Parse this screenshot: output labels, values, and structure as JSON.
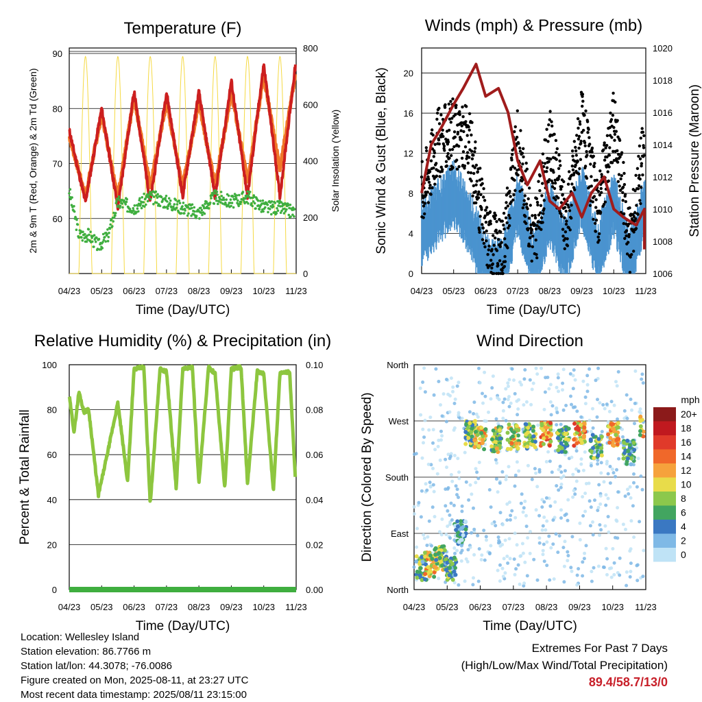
{
  "info": {
    "location": "Location: Wellesley Island",
    "elevation": "Station elevation: 86.7766 m",
    "latlon": "Station lat/lon: 44.3078; -76.0086",
    "created": "Figure created on Mon, 2025-08-11, at 23:27 UTC",
    "recent": "Most recent data timestamp: 2025/08/11 23:15:00"
  },
  "extremes": {
    "line1": "Extremes For Past 7 Days",
    "line2": "(High/Low/Max Wind/Total Precipitation)",
    "value": "89.4/58.7/13/0"
  },
  "chart_data": [
    {
      "type": "line",
      "title": "Temperature (F)",
      "xlabel": "Time (Day/UTC)",
      "ylabel": "2m & 9m T (Red, Orange) & 2m Td (Green)",
      "y2label": "Solar Insolation (Yellow)",
      "x_ticks": [
        "04/23",
        "05/23",
        "06/23",
        "07/23",
        "08/23",
        "09/23",
        "10/23",
        "11/23"
      ],
      "ylim": [
        50,
        91
      ],
      "yticks": [
        60,
        70,
        80,
        90
      ],
      "y2lim": [
        0,
        800
      ],
      "y2ticks": [
        0,
        200,
        400,
        600,
        800
      ],
      "colors": {
        "t2m": "#cc1f1f",
        "t9m": "#f07828",
        "td": "#3fae3f",
        "solar": "#f5d942"
      },
      "series": [
        {
          "key": "t2m",
          "x": [
            0,
            0.5,
            1,
            1.5,
            2,
            2.5,
            3,
            3.5,
            4,
            4.5,
            5,
            5.5,
            6,
            6.5,
            7,
            7.3
          ],
          "values": [
            76,
            63,
            80,
            62,
            83,
            63,
            83,
            64,
            83,
            64,
            85,
            64,
            88,
            64,
            89,
            85
          ]
        },
        {
          "key": "t9m",
          "x": [
            0,
            0.5,
            1,
            1.5,
            2,
            2.5,
            3,
            3.5,
            4,
            4.5,
            5,
            5.5,
            6,
            6.5,
            7,
            7.3
          ],
          "values": [
            75,
            64,
            79,
            64,
            82,
            66,
            81,
            66,
            81,
            66,
            83,
            67,
            86,
            69,
            87,
            84
          ]
        },
        {
          "key": "td",
          "x": [
            0,
            0.3,
            0.6,
            0.9,
            1.2,
            1.5,
            2,
            2.5,
            3,
            3.5,
            4,
            4.5,
            5,
            5.5,
            6,
            6.5,
            7,
            7.3
          ],
          "values": [
            65,
            57,
            57,
            55,
            57,
            63,
            62,
            64,
            63,
            62,
            61,
            64,
            63,
            64,
            62,
            62,
            61,
            59
          ]
        },
        {
          "key": "solar",
          "x": [
            0,
            0.5,
            1,
            1.5,
            2,
            2.5,
            3,
            3.5,
            4,
            4.5,
            5,
            5.5,
            6,
            6.5,
            7,
            7.3
          ],
          "values": [
            0,
            765,
            0,
            780,
            0,
            780,
            0,
            770,
            0,
            770,
            0,
            770,
            0,
            770,
            0,
            400
          ]
        }
      ]
    },
    {
      "type": "scatter",
      "title": "Winds (mph) & Pressure (mb)",
      "xlabel": "Time (Day/UTC)",
      "ylabel": "Sonic Wind & Gust (Blue, Black)",
      "y2label": "Station Pressure (Maroon)",
      "x_ticks": [
        "04/23",
        "05/23",
        "06/23",
        "07/23",
        "08/23",
        "09/23",
        "10/23",
        "11/23"
      ],
      "ylim": [
        0,
        22.5
      ],
      "yticks": [
        0,
        4,
        8,
        12,
        16,
        20
      ],
      "y2lim": [
        1006,
        1020
      ],
      "y2ticks": [
        1006,
        1008,
        1010,
        1012,
        1014,
        1016,
        1018,
        1020
      ],
      "colors": {
        "wind": "#4a93cf",
        "gust": "#000000",
        "pressure": "#a01c1c"
      },
      "series": [
        {
          "key": "wind",
          "x": [
            0,
            0.5,
            1,
            1.5,
            2,
            2.5,
            3,
            3.5,
            4,
            4.5,
            5,
            5.5,
            6,
            6.5,
            7,
            7.3
          ],
          "values": [
            5,
            7,
            9,
            6,
            2,
            1,
            8,
            2,
            7,
            3,
            9,
            3,
            8,
            2,
            8,
            6
          ]
        },
        {
          "key": "gust",
          "x": [
            0,
            0.5,
            1,
            1.5,
            2,
            2.5,
            3,
            3.5,
            4,
            4.5,
            5,
            5.5,
            6,
            6.5,
            7,
            7.3
          ],
          "values": [
            8,
            13,
            14,
            13,
            4,
            2,
            13,
            3,
            13,
            5,
            15,
            6,
            15,
            3,
            14,
            12
          ]
        },
        {
          "key": "pressure",
          "x": [
            0,
            0.3,
            0.6,
            1,
            1.3,
            1.7,
            2,
            2.4,
            2.7,
            3,
            3.3,
            3.7,
            4,
            4.3,
            4.7,
            5,
            5.3,
            5.7,
            6,
            6.3,
            6.7,
            7,
            7.3
          ],
          "values": [
            1011,
            1014,
            1015,
            1016.5,
            1017.5,
            1019,
            1017,
            1017.5,
            1016,
            1013,
            1011.5,
            1013,
            1010.5,
            1010,
            1011,
            1009.5,
            1011,
            1012,
            1010,
            1009.5,
            1009,
            1010,
            1007.5
          ]
        }
      ]
    },
    {
      "type": "line",
      "title": "Relative Humidity (%) & Precipitation (in)",
      "xlabel": "Time (Day/UTC)",
      "ylabel": "Percent & Total Rainfall",
      "x_ticks": [
        "04/23",
        "05/23",
        "06/23",
        "07/23",
        "08/23",
        "09/23",
        "10/23",
        "11/23"
      ],
      "ylim": [
        0,
        100
      ],
      "yticks": [
        0,
        20,
        40,
        60,
        80,
        100
      ],
      "y2lim": [
        0,
        0.1
      ],
      "y2ticks": [
        "0.00",
        "0.02",
        "0.04",
        "0.06",
        "0.08",
        "0.10"
      ],
      "colors": {
        "rh": "#8dc63f",
        "precip": "#3fae3f"
      },
      "series": [
        {
          "key": "rh",
          "x": [
            0,
            0.15,
            0.3,
            0.45,
            0.6,
            0.9,
            1.2,
            1.5,
            1.8,
            2,
            2.3,
            2.5,
            2.8,
            3,
            3.3,
            3.5,
            3.8,
            4,
            4.3,
            4.5,
            4.8,
            5,
            5.3,
            5.5,
            5.8,
            6,
            6.3,
            6.5,
            6.8,
            7,
            7.3
          ],
          "values": [
            86,
            70,
            88,
            79,
            80,
            42,
            62,
            83,
            48,
            98,
            99,
            38,
            98,
            97,
            45,
            98,
            99,
            47,
            99,
            96,
            45,
            98,
            99,
            47,
            97,
            96,
            44,
            96,
            97,
            42,
            45
          ]
        },
        {
          "key": "precip",
          "x": [
            0,
            7.3
          ],
          "values": [
            0,
            0
          ]
        }
      ]
    },
    {
      "type": "scatter",
      "title": "Wind Direction",
      "xlabel": "Time (Day/UTC)",
      "ylabel": "Direction (Colored By Speed)",
      "x_ticks": [
        "04/23",
        "05/23",
        "06/23",
        "07/23",
        "08/23",
        "09/23",
        "10/23",
        "11/23"
      ],
      "y_ticks": [
        "North",
        "East",
        "South",
        "West",
        "North"
      ],
      "legend": {
        "title": "mph",
        "labels": [
          "20+",
          "18",
          "16",
          "14",
          "12",
          "10",
          "8",
          "6",
          "4",
          "2",
          "0"
        ],
        "colors": [
          "#8b1a1a",
          "#c0191f",
          "#e03a2a",
          "#f0682a",
          "#f6a23c",
          "#e8dc4a",
          "#8cc84c",
          "#42a560",
          "#3a78c2",
          "#7fb9e6",
          "#bfe3f6"
        ]
      },
      "clusters": [
        {
          "x": 0.2,
          "dir": 35,
          "speed": 6
        },
        {
          "x": 0.5,
          "dir": 40,
          "speed": 10
        },
        {
          "x": 0.8,
          "dir": 50,
          "speed": 8
        },
        {
          "x": 1.1,
          "dir": 35,
          "speed": 6
        },
        {
          "x": 1.4,
          "dir": 90,
          "speed": 3
        },
        {
          "x": 1.7,
          "dir": 250,
          "speed": 7
        },
        {
          "x": 2.0,
          "dir": 240,
          "speed": 10
        },
        {
          "x": 2.5,
          "dir": 240,
          "speed": 8
        },
        {
          "x": 3.0,
          "dir": 245,
          "speed": 10
        },
        {
          "x": 3.5,
          "dir": 245,
          "speed": 7
        },
        {
          "x": 4.0,
          "dir": 250,
          "speed": 12
        },
        {
          "x": 4.5,
          "dir": 240,
          "speed": 7
        },
        {
          "x": 5.0,
          "dir": 250,
          "speed": 12
        },
        {
          "x": 5.5,
          "dir": 230,
          "speed": 6
        },
        {
          "x": 6.0,
          "dir": 250,
          "speed": 11
        },
        {
          "x": 6.5,
          "dir": 220,
          "speed": 5
        },
        {
          "x": 7.0,
          "dir": 260,
          "speed": 10
        }
      ]
    }
  ]
}
